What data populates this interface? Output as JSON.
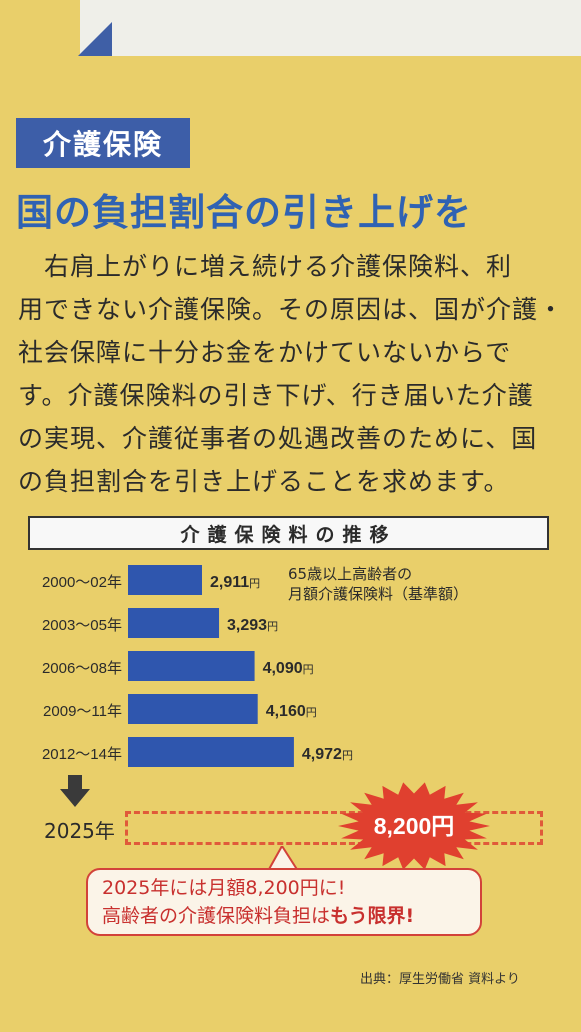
{
  "section_tag": "介護保険",
  "headline": "国の負担割合の引き上げを",
  "body_lines": [
    "右肩上がりに増え続ける介護保険料、利",
    "用できない介護保険。その原因は、国が介護・",
    "社会保障に十分お金をかけていないからで",
    "す。介護保険料の引き下げ、行き届いた介護",
    "の実現、介護従事者の処遇改善のために、国",
    "の負担割合を引き上げることを求めます。"
  ],
  "chart_note": {
    "line1": "65歳以上高齢者の",
    "line2": "月額介護保険料（基準額）"
  },
  "chart_data": {
    "type": "bar",
    "title": "介護保険料の推移",
    "categories": [
      "2000〜02年",
      "2003〜05年",
      "2006〜08年",
      "2009〜11年",
      "2012〜14年"
    ],
    "values": [
      2911,
      3293,
      4090,
      4160,
      4972
    ],
    "value_labels": [
      "2,911",
      "3,293",
      "4,090",
      "4,160",
      "4,972"
    ],
    "unit": "円",
    "projection": {
      "label": "2025年",
      "value": 8200,
      "value_label": "8,200円"
    },
    "bar_color": "#2f56ae"
  },
  "callout": {
    "line1": "2025年には月額8,200円に!",
    "line2_prefix": "高齢者の介護保険料負担は",
    "line2_strong": "もう限界!"
  },
  "source": "出典：厚生労働省 資料より",
  "colors": {
    "background": "#e9cf6a",
    "accent_blue": "#3d5ea8",
    "headline_blue": "#2f62b3",
    "alert_red": "#e0402f"
  }
}
